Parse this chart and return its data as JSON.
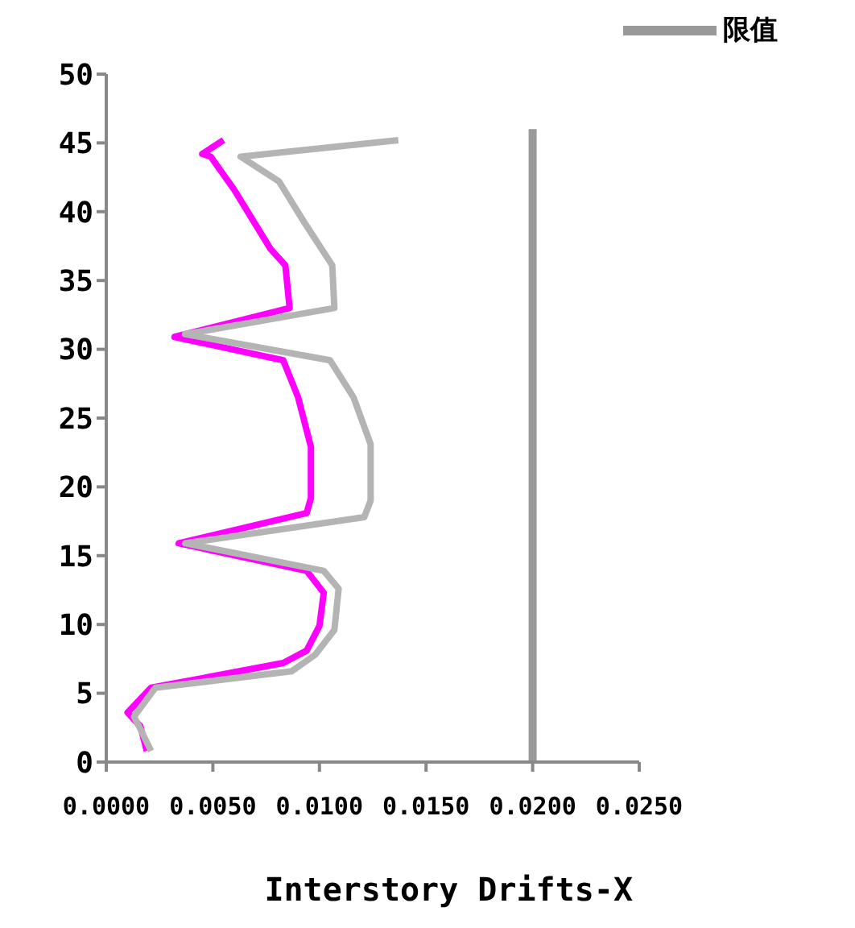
{
  "chart_data": {
    "type": "line",
    "xlabel": "Interstory Drifts-X",
    "xlim": [
      0,
      0.025
    ],
    "xticks": [
      {
        "value": 0,
        "label": "0.0000"
      },
      {
        "value": 0.005,
        "label": "0.0050"
      },
      {
        "value": 0.01,
        "label": "0.0100"
      },
      {
        "value": 0.015,
        "label": "0.0150"
      },
      {
        "value": 0.02,
        "label": "0.0200"
      },
      {
        "value": 0.025,
        "label": "0.0250"
      }
    ],
    "ylim": [
      0,
      50
    ],
    "yticks": [
      0,
      5,
      10,
      15,
      20,
      25,
      30,
      35,
      40,
      45,
      50
    ],
    "legend": "top right",
    "marker": "none",
    "line_style": "solid",
    "series": [
      {
        "color": "#ff00ff",
        "x": [
          0.0019,
          0.0016,
          0.001,
          0.0021,
          0.0083,
          0.0094,
          0.01,
          0.0102,
          0.0094,
          0.0034,
          0.0094,
          0.0096,
          0.0096,
          0.009,
          0.0083,
          0.0032,
          0.0086,
          0.0084,
          0.0077,
          0.006,
          0.0049,
          0.0045,
          0.0055
        ],
        "values": [
          0.8,
          2.6,
          3.6,
          5.4,
          7.2,
          8.1,
          9.9,
          12.3,
          13.9,
          15.9,
          18.1,
          19.2,
          22.9,
          26.5,
          29.2,
          30.9,
          33,
          36.1,
          37.3,
          41.6,
          44,
          44.2,
          45.2
        ]
      },
      {
        "color": "#b4b4b4",
        "x": [
          0.0021,
          0.0016,
          0.0013,
          0.0023,
          0.0087,
          0.0098,
          0.0107,
          0.0109,
          0.0102,
          0.0037,
          0.0121,
          0.0124,
          0.0124,
          0.0116,
          0.0105,
          0.0037,
          0.0107,
          0.0106,
          0.0093,
          0.0081,
          0.0063,
          0.0137
        ],
        "values": [
          0.8,
          2.4,
          3.3,
          5.4,
          6.6,
          7.8,
          9.6,
          12.6,
          13.9,
          15.9,
          17.8,
          19,
          23.1,
          26.5,
          29.2,
          31.1,
          33,
          36.1,
          39.2,
          42.2,
          44,
          45.2
        ]
      },
      {
        "name": "限值",
        "color": "#999999",
        "x": [
          0.02,
          0.02,
          0.02
        ],
        "values": [
          0,
          23,
          46
        ]
      }
    ]
  }
}
